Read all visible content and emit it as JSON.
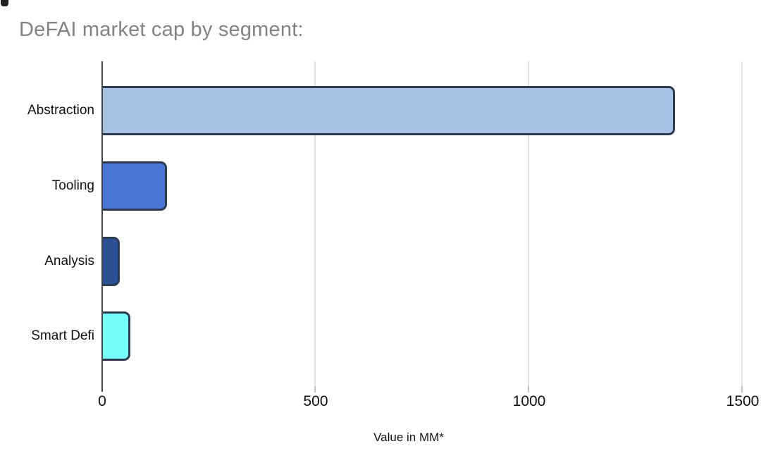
{
  "chart_data": {
    "type": "bar",
    "orientation": "horizontal",
    "title": "DeFAI market cap by segment:",
    "categories": [
      "Abstraction",
      "Tooling",
      "Analysis",
      "Smart Defi"
    ],
    "values": [
      1340,
      150,
      40,
      65
    ],
    "xlabel": "Value in MM*",
    "xlim": [
      0,
      1500
    ],
    "xticks": [
      "0",
      "500",
      "1000",
      "1500"
    ],
    "grid": true,
    "legend": false,
    "bar_colors": [
      "#a5c2e5",
      "#4a77d6",
      "#2b5094",
      "#75fbfa"
    ],
    "bar_border_color": "#2e3a4d",
    "colors": {
      "title_text": "#828282",
      "axis_line": "#424242",
      "gridline": "#e2e2e2",
      "tick_mark": "#c2c2c2",
      "tick_text": "#111111",
      "category_text": "#111111",
      "background": "#ffffff"
    }
  }
}
